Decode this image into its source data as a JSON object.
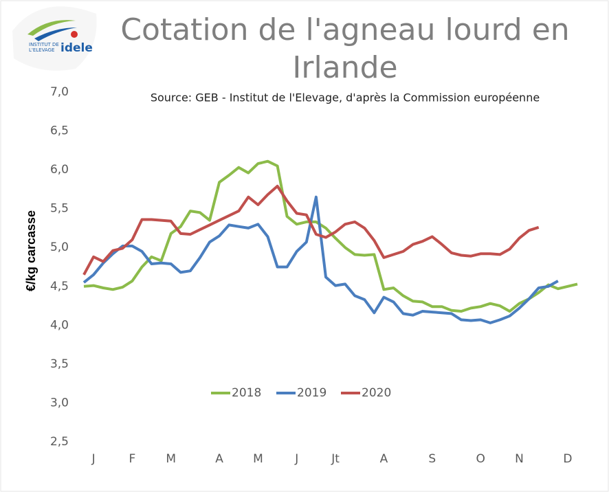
{
  "chart_data": {
    "type": "line",
    "title": [
      "Cotation de l'agneau lourd en",
      "Irlande"
    ],
    "subtitle": "Source: GEB - Institut de l'Elevage, d'après la Commission européenne",
    "y_label": "€/kg carcasse",
    "logo": {
      "line1": "INSTITUT DE",
      "line2": "L'ELEVAGE",
      "brand": "idele"
    },
    "categories": [
      null,
      "J",
      null,
      null,
      null,
      "F",
      null,
      null,
      null,
      "M",
      null,
      null,
      null,
      null,
      "A",
      null,
      null,
      null,
      "M",
      null,
      null,
      null,
      "J",
      null,
      null,
      null,
      "Jt",
      null,
      null,
      null,
      null,
      "A",
      null,
      null,
      null,
      null,
      "S",
      null,
      null,
      null,
      null,
      "O",
      null,
      null,
      null,
      "N",
      null,
      null,
      null,
      null,
      "D",
      null
    ],
    "series": [
      {
        "name": "2018",
        "color": "#8cbb4a",
        "values": [
          4.5,
          4.51,
          4.48,
          4.46,
          4.49,
          4.57,
          4.75,
          4.88,
          4.83,
          5.18,
          5.27,
          5.47,
          5.45,
          5.35,
          5.84,
          5.93,
          6.03,
          5.96,
          6.08,
          6.11,
          6.05,
          5.4,
          5.3,
          5.33,
          5.33,
          5.25,
          5.12,
          5.0,
          4.91,
          4.9,
          4.91,
          4.46,
          4.48,
          4.38,
          4.31,
          4.3,
          4.24,
          4.24,
          4.19,
          4.18,
          4.22,
          4.24,
          4.28,
          4.25,
          4.18,
          4.28,
          4.34,
          4.42,
          4.52,
          4.47,
          4.5,
          4.53
        ]
      },
      {
        "name": "2019",
        "color": "#4a7ebf",
        "values": [
          4.55,
          4.65,
          4.8,
          4.92,
          5.02,
          5.02,
          4.95,
          4.79,
          4.8,
          4.79,
          4.68,
          4.7,
          4.87,
          5.07,
          5.15,
          5.29,
          5.27,
          5.25,
          5.3,
          5.14,
          4.75,
          4.75,
          4.95,
          5.07,
          5.65,
          4.62,
          4.51,
          4.53,
          4.38,
          4.33,
          4.16,
          4.36,
          4.3,
          4.15,
          4.13,
          4.18,
          4.17,
          4.16,
          4.15,
          4.07,
          4.06,
          4.07,
          4.03,
          4.07,
          4.12,
          4.22,
          4.34,
          4.48,
          4.5,
          4.57,
          null,
          null
        ]
      },
      {
        "name": "2020",
        "color": "#c0504d",
        "values": [
          4.65,
          4.88,
          4.82,
          4.96,
          4.99,
          5.1,
          5.36,
          5.36,
          5.35,
          5.34,
          5.18,
          5.17,
          5.23,
          5.29,
          5.35,
          5.41,
          5.47,
          5.65,
          5.55,
          5.68,
          5.79,
          5.6,
          5.44,
          5.42,
          5.17,
          5.13,
          5.2,
          5.3,
          5.33,
          5.25,
          5.09,
          4.87,
          4.91,
          4.95,
          5.04,
          5.08,
          5.14,
          5.04,
          4.93,
          4.9,
          4.89,
          4.92,
          4.92,
          4.91,
          4.98,
          5.12,
          5.22,
          5.26,
          null,
          null,
          null,
          null
        ]
      }
    ],
    "ylim": [
      2.5,
      7.0
    ],
    "yticks": [
      {
        "value": 2.5,
        "label": "2,5"
      },
      {
        "value": 3.0,
        "label": "3,0"
      },
      {
        "value": 3.5,
        "label": "3,5"
      },
      {
        "value": 4.0,
        "label": "4,0"
      },
      {
        "value": 4.5,
        "label": "4,5"
      },
      {
        "value": 5.0,
        "label": "5,0"
      },
      {
        "value": 5.5,
        "label": "5,5"
      },
      {
        "value": 6.0,
        "label": "6,0"
      },
      {
        "value": 6.5,
        "label": "6,5"
      },
      {
        "value": 7.0,
        "label": "7,0"
      }
    ],
    "grid": false,
    "legend": "bottom"
  }
}
